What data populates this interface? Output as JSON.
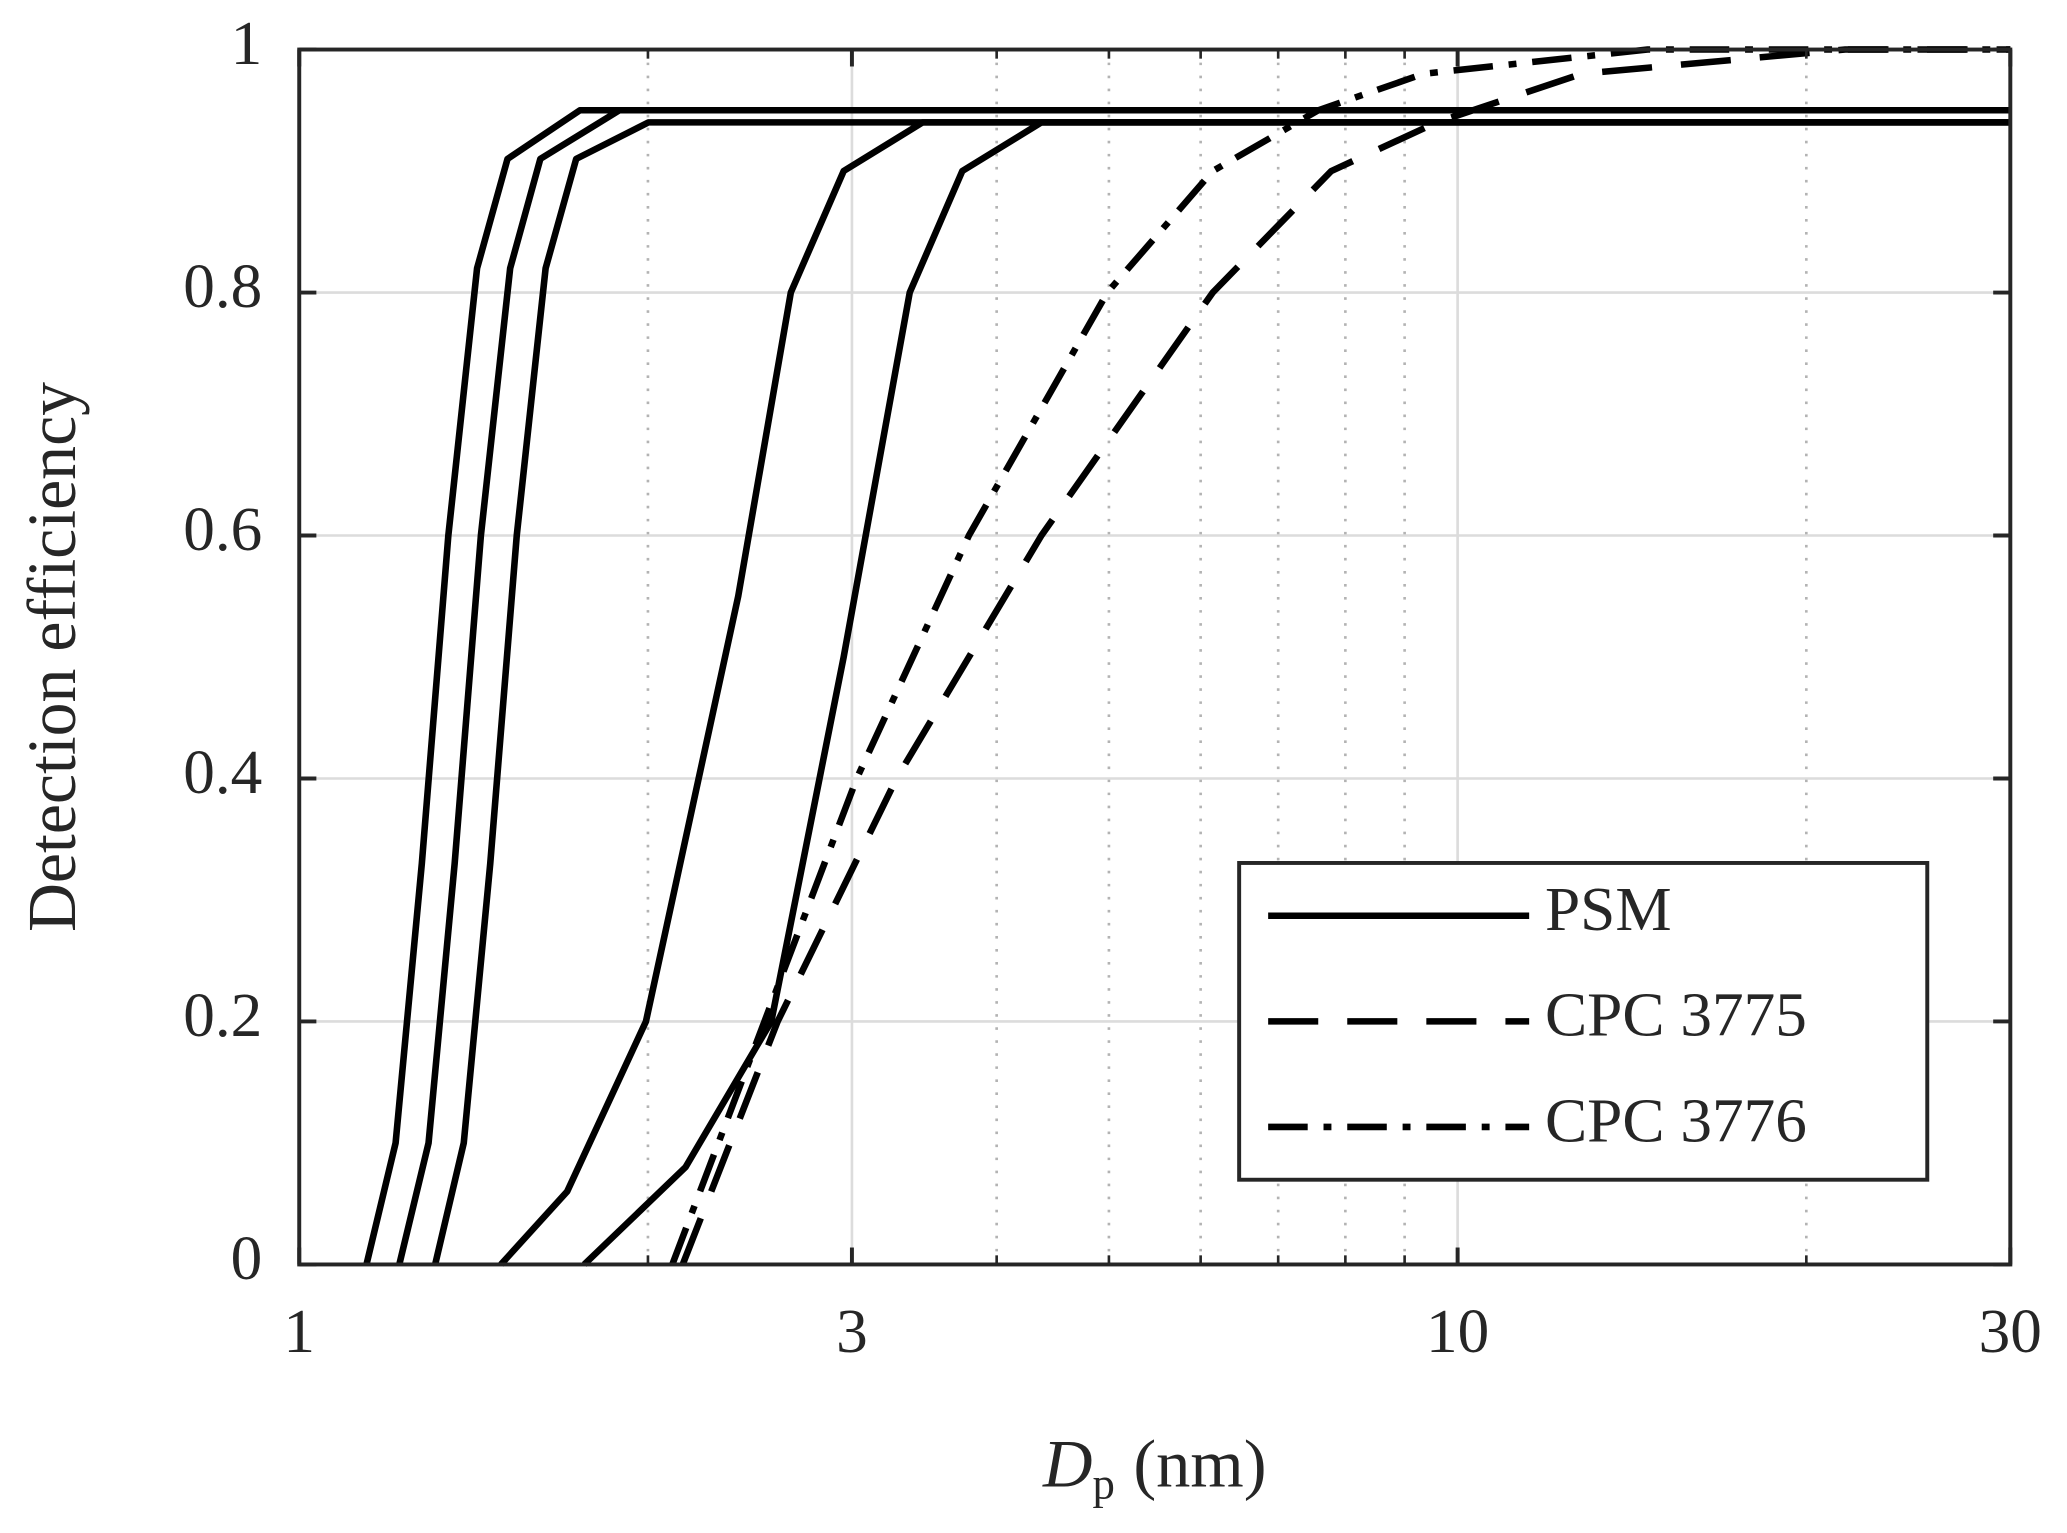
{
  "chart_data": {
    "type": "line",
    "ylabel": "Detection efficiency",
    "xlabel_parts": [
      "D",
      "p",
      "(nm)"
    ],
    "xscale": "log",
    "xlim": [
      1,
      30
    ],
    "xticks": [
      1,
      3,
      10,
      30
    ],
    "xminorticks": [
      2,
      4,
      5,
      6,
      7,
      8,
      9,
      20
    ],
    "ylim": [
      0,
      1
    ],
    "yticks": [
      0,
      0.2,
      0.4,
      0.6,
      0.8,
      1
    ],
    "grid": true,
    "legend": "lower right",
    "series": [
      {
        "name": "PSM",
        "color": "#000000",
        "dash": "solid",
        "x": [
          1.143,
          1.211,
          1.276,
          1.345,
          1.424,
          1.513,
          1.747,
          30
        ],
        "values": [
          0,
          0.1,
          0.33,
          0.6,
          0.82,
          0.91,
          0.95,
          0.95
        ]
      },
      {
        "color": "#000000",
        "dash": "solid",
        "x": [
          1.22,
          1.293,
          1.362,
          1.435,
          1.521,
          1.615,
          1.89,
          30
        ],
        "values": [
          0,
          0.1,
          0.33,
          0.6,
          0.82,
          0.91,
          0.95,
          0.95
        ]
      },
      {
        "color": "#000000",
        "dash": "solid",
        "x": [
          1.31,
          1.387,
          1.462,
          1.541,
          1.632,
          1.734,
          2.002,
          30
        ],
        "values": [
          0,
          0.1,
          0.33,
          0.6,
          0.82,
          0.91,
          0.94,
          0.94
        ]
      },
      {
        "color": "#000000",
        "dash": "solid",
        "x": [
          1.493,
          1.703,
          1.992,
          2.212,
          2.393,
          2.657,
          2.951,
          3.453,
          30
        ],
        "values": [
          0,
          0.06,
          0.2,
          0.4,
          0.55,
          0.8,
          0.9,
          0.94,
          0.94
        ]
      },
      {
        "color": "#000000",
        "dash": "solid",
        "x": [
          1.762,
          2.155,
          2.556,
          2.951,
          3.365,
          3.736,
          4.372,
          30
        ],
        "values": [
          0,
          0.08,
          0.2,
          0.5,
          0.8,
          0.9,
          0.94,
          0.94
        ]
      },
      {
        "name": "CPC 3775",
        "color": "#000000",
        "dash": "dashed",
        "x": [
          2.143,
          2.588,
          3.278,
          4.372,
          6.147,
          7.78,
          9.594,
          12.8,
          21.61,
          30
        ],
        "values": [
          0,
          0.2,
          0.4,
          0.6,
          0.8,
          0.9,
          0.94,
          0.98,
          1,
          1
        ]
      },
      {
        "name": "CPC 3776",
        "color": "#000000",
        "dash": "dashdot",
        "x": [
          2.099,
          2.521,
          3.029,
          3.785,
          4.984,
          6.147,
          7.581,
          9.346,
          14.59,
          30
        ],
        "values": [
          0,
          0.2,
          0.4,
          0.6,
          0.8,
          0.9,
          0.95,
          0.98,
          1,
          1
        ]
      }
    ]
  }
}
